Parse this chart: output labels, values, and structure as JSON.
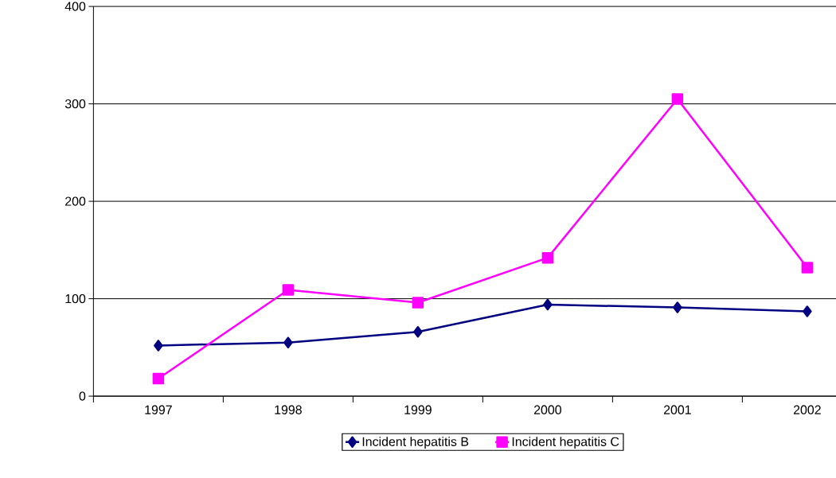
{
  "chart_data": {
    "type": "line",
    "categories": [
      "1997",
      "1998",
      "1999",
      "2000",
      "2001",
      "2002"
    ],
    "series": [
      {
        "name": "Incident hepatitis B",
        "color": "#000080",
        "marker": "diamond",
        "values": [
          52,
          55,
          66,
          94,
          91,
          87
        ]
      },
      {
        "name": "Incident hepatitis C",
        "color": "#ff00ff",
        "marker": "square",
        "values": [
          18,
          109,
          96,
          142,
          305,
          132
        ]
      }
    ],
    "ylim": [
      0,
      400
    ],
    "yticks": [
      0,
      100,
      200,
      300,
      400
    ],
    "grid": "y",
    "legend": "bottom",
    "line_style": "solid"
  }
}
